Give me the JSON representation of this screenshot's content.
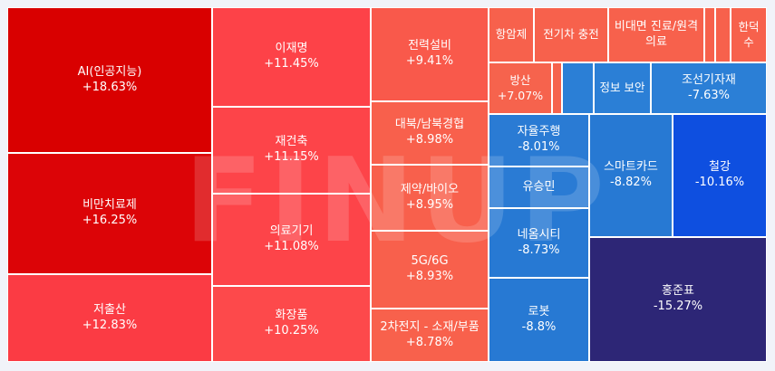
{
  "watermark": "FINUP",
  "chart_data": {
    "type": "treemap",
    "tiles": [
      {
        "name": "AI(인공지능)",
        "value": "+18.63%",
        "color": "#d90000"
      },
      {
        "name": "비만치료제",
        "value": "+16.25%",
        "color": "#dc0407"
      },
      {
        "name": "저출산",
        "value": "+12.83%",
        "color": "#fb3b44"
      },
      {
        "name": "이재명",
        "value": "+11.45%",
        "color": "#fd4248"
      },
      {
        "name": "재건축",
        "value": "+11.15%",
        "color": "#fd4449"
      },
      {
        "name": "의료기기",
        "value": "+11.08%",
        "color": "#fd4449"
      },
      {
        "name": "화장품",
        "value": "+10.25%",
        "color": "#fd494b"
      },
      {
        "name": "전력설비",
        "value": "+9.41%",
        "color": "#f9594b"
      },
      {
        "name": "대북/남북경협",
        "value": "+8.98%",
        "color": "#f8604c"
      },
      {
        "name": "제약/바이오",
        "value": "+8.95%",
        "color": "#f8604c"
      },
      {
        "name": "5G/6G",
        "value": "+8.93%",
        "color": "#f8604c"
      },
      {
        "name": "2차전지 - 소재/부품",
        "value": "+8.78%",
        "color": "#f8614c"
      },
      {
        "name": "항암제",
        "value": "",
        "color": "#f7614c"
      },
      {
        "name": "전기차 충전",
        "value": "",
        "color": "#f7614c"
      },
      {
        "name": "비대면 진료/원격의료",
        "value": "",
        "color": "#f7614c"
      },
      {
        "name": "",
        "value": "",
        "color": "#f7614c"
      },
      {
        "name": "",
        "value": "",
        "color": "#f7614c"
      },
      {
        "name": "한덕수",
        "value": "",
        "color": "#f7614c"
      },
      {
        "name": "방산",
        "value": "+7.07%",
        "color": "#f6634d"
      },
      {
        "name": "",
        "value": "",
        "color": "#f6634d"
      },
      {
        "name": "",
        "value": "",
        "color": "#2b7fd6"
      },
      {
        "name": "정보 보안",
        "value": "",
        "color": "#2b7fd6"
      },
      {
        "name": "조선기자재",
        "value": "-7.63%",
        "color": "#2b7fd6"
      },
      {
        "name": "자율주행",
        "value": "-8.01%",
        "color": "#2a7bd4"
      },
      {
        "name": "유승민",
        "value": "",
        "color": "#2a7bd4"
      },
      {
        "name": "네옴시티",
        "value": "-8.73%",
        "color": "#2779d3"
      },
      {
        "name": "로봇",
        "value": "-8.8%",
        "color": "#2779d3"
      },
      {
        "name": "스마트카드",
        "value": "-8.82%",
        "color": "#2779d3"
      },
      {
        "name": "철강",
        "value": "-10.16%",
        "color": "#0e4fe0"
      },
      {
        "name": "홍준표",
        "value": "-15.27%",
        "color": "#2d2676"
      }
    ]
  }
}
